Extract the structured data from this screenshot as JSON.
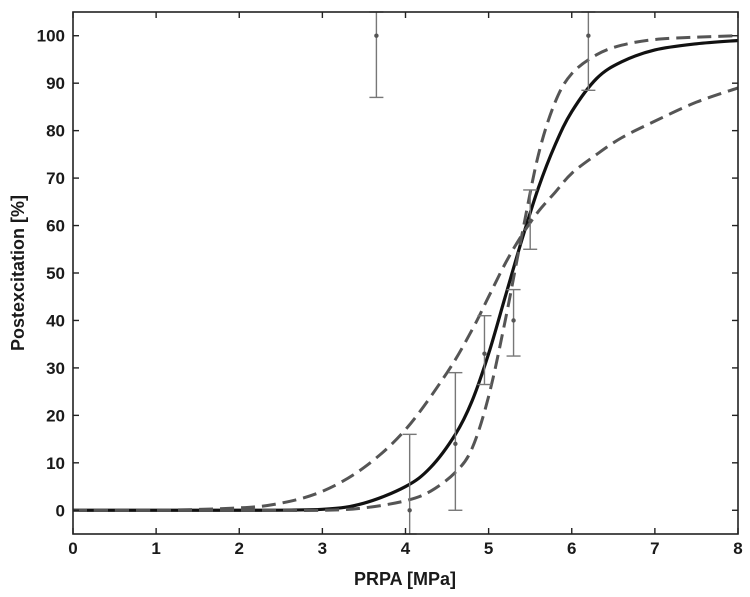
{
  "chart_data": {
    "type": "line",
    "title": "",
    "xlabel": "PRPA [MPa]",
    "ylabel": "Postexcitation [%]",
    "xlim": [
      0,
      8
    ],
    "ylim": [
      -5,
      105
    ],
    "x_ticks": [
      "0",
      "1",
      "2",
      "3",
      "4",
      "5",
      "6",
      "7",
      "8"
    ],
    "y_ticks": [
      "0",
      "10",
      "20",
      "30",
      "40",
      "50",
      "60",
      "70",
      "80",
      "90",
      "100"
    ],
    "grid": false,
    "legend": "none",
    "colors": {
      "fit": "#111111",
      "bounds": "#555555",
      "errorbars": "#777777",
      "axes": "#222222"
    },
    "series": [
      {
        "style": "solid",
        "x": [
          0,
          1,
          2,
          3,
          3.5,
          4,
          4.3,
          4.6,
          4.8,
          5.0,
          5.2,
          5.4,
          5.6,
          5.8,
          6.0,
          6.3,
          6.6,
          7.0,
          7.5,
          8.0
        ],
        "y": [
          0,
          0,
          0,
          0.2,
          1.5,
          5,
          9,
          16,
          23,
          33,
          45,
          57,
          68,
          77,
          84,
          91,
          94.5,
          97,
          98.3,
          99
        ]
      },
      {
        "style": "dashed",
        "x": [
          0,
          1,
          2,
          2.5,
          3,
          3.5,
          4,
          4.5,
          4.8,
          5.0,
          5.2,
          5.4,
          5.6,
          5.8,
          6.0,
          6.3,
          6.6,
          7.0,
          7.5,
          8.0
        ],
        "y": [
          0,
          0,
          0.5,
          1.5,
          4,
          9,
          17,
          29,
          38,
          45,
          52,
          58,
          63,
          67,
          71,
          75,
          78.5,
          82,
          86,
          89
        ]
      },
      {
        "style": "dashed",
        "x": [
          0,
          1,
          2,
          3,
          3.5,
          4,
          4.3,
          4.6,
          4.8,
          5.0,
          5.2,
          5.4,
          5.6,
          5.8,
          6.0,
          6.3,
          6.6,
          7.0,
          7.5,
          8.0
        ],
        "y": [
          0,
          0,
          0,
          0,
          0.5,
          2,
          4,
          8,
          13,
          24,
          40,
          58,
          75,
          86,
          92,
          96,
          98,
          99.2,
          99.7,
          100
        ]
      }
    ],
    "error_points": [
      {
        "x": 3.65,
        "y": 100,
        "ylow": 87,
        "yhigh": 105
      },
      {
        "x": 4.05,
        "y": 0,
        "ylow": -5,
        "yhigh": 16
      },
      {
        "x": 4.6,
        "y": 14,
        "ylow": 0,
        "yhigh": 29
      },
      {
        "x": 4.95,
        "y": 33,
        "ylow": 26.5,
        "yhigh": 41
      },
      {
        "x": 5.3,
        "y": 40,
        "ylow": 32.5,
        "yhigh": 46.5
      },
      {
        "x": 5.5,
        "y": 61,
        "ylow": 55,
        "yhigh": 67.5
      },
      {
        "x": 6.2,
        "y": 100,
        "ylow": 88.5,
        "yhigh": 105
      }
    ]
  }
}
